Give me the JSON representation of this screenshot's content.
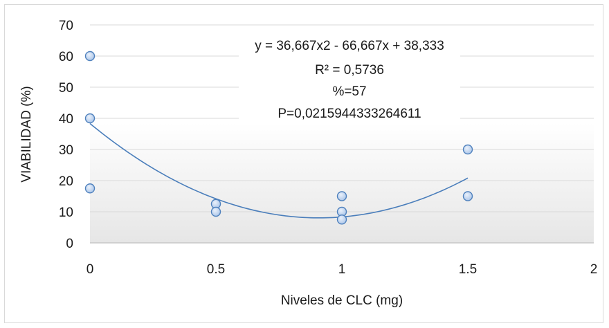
{
  "chart_data": {
    "type": "scatter",
    "xlabel": "Niveles de CLC (mg)",
    "ylabel": "VIABILIDAD (%)",
    "xlim": [
      0,
      2
    ],
    "ylim": [
      0,
      70
    ],
    "x_ticks": [
      "0",
      "0.5",
      "1",
      "1.5",
      "2"
    ],
    "y_ticks": [
      "0",
      "10",
      "20",
      "30",
      "40",
      "50",
      "60",
      "70"
    ],
    "grid": "horizontal",
    "series": [
      {
        "points": [
          [
            0,
            60
          ],
          [
            0,
            40
          ],
          [
            0,
            17.5
          ],
          [
            0.5,
            12.5
          ],
          [
            0.5,
            10
          ],
          [
            1,
            15
          ],
          [
            1,
            10
          ],
          [
            1,
            7.5
          ],
          [
            1.5,
            30
          ],
          [
            1.5,
            15
          ]
        ]
      }
    ],
    "trendline": {
      "type": "polynomial",
      "coefficients": [
        36.667,
        -66.667,
        38.333
      ],
      "x_range": [
        0,
        1.5
      ]
    },
    "annotations": [
      "y = 36,667x2 - 66,667x + 38,333",
      "R² = 0,5736",
      "%=57",
      "P=0,0215944333264611"
    ],
    "colors": {
      "marker_fill": "#c5d9f1",
      "marker_stroke": "#4f81bd",
      "trendline": "#4a7ebb",
      "gridline": "#d9d9d9"
    }
  }
}
